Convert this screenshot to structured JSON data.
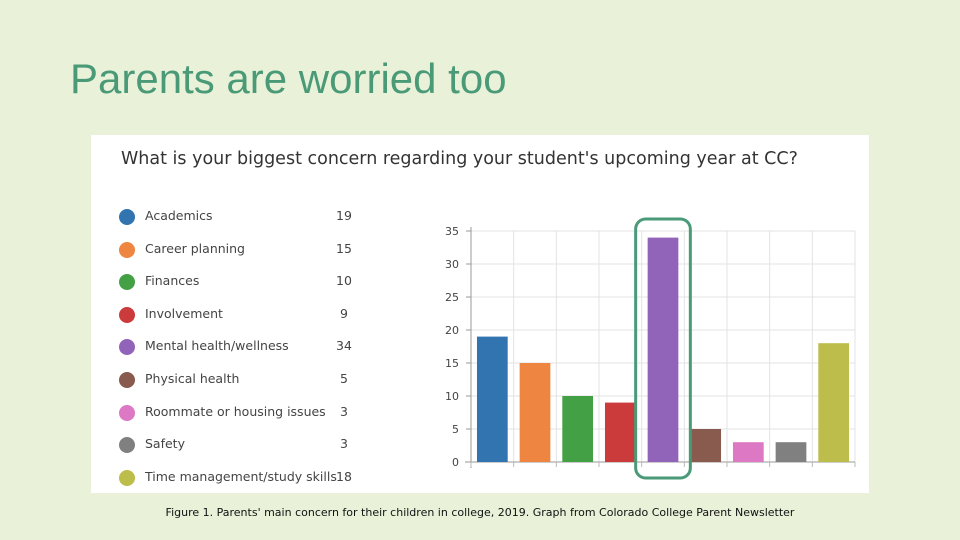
{
  "slide": {
    "title": "Parents are worried too",
    "caption": "Figure 1. Parents' main concern for their children in college, 2019. Graph from Colorado College Parent Newsletter"
  },
  "chart_data": {
    "type": "bar",
    "title": "What is your biggest concern regarding your student's upcoming year at CC?",
    "categories": [
      "Academics",
      "Career planning",
      "Finances",
      "Involvement",
      "Mental health/wellness",
      "Physical health",
      "Roommate or housing issues",
      "Safety",
      "Time management/study skills"
    ],
    "values": [
      19,
      15,
      10,
      9,
      34,
      5,
      3,
      3,
      18
    ],
    "colors": [
      "#3274b0",
      "#ee8642",
      "#44a045",
      "#cc3b3b",
      "#9264b9",
      "#895a4e",
      "#dd78c4",
      "#808080",
      "#bcbd4a"
    ],
    "ylim": [
      0,
      35
    ],
    "yticks": [
      0,
      5,
      10,
      15,
      20,
      25,
      30,
      35
    ],
    "grid": true,
    "legend_position": "left",
    "highlight_category": "Mental health/wellness",
    "highlight_color": "#4a9a78"
  }
}
